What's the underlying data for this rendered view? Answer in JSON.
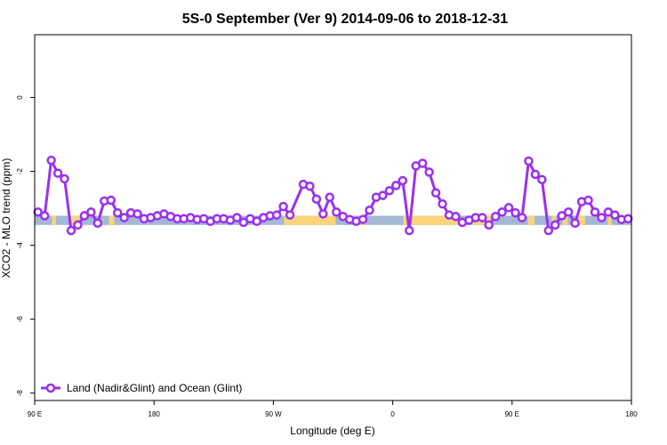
{
  "chart_data": {
    "type": "line",
    "title": "5S-0 September (Ver 9)   2014-09-06 to 2018-12-31",
    "xlabel": "Longitude (deg E)",
    "ylabel": "XCO2 - MLO trend (ppm)",
    "xlim": [
      90,
      540
    ],
    "ylim": [
      -8.2,
      1.7
    ],
    "x_tick_positions": [
      90,
      180,
      270,
      360,
      450,
      540
    ],
    "x_tick_labels": [
      "90 E",
      "180",
      "90 W",
      "0",
      "90 E",
      "180"
    ],
    "y_ticks": [
      0,
      -2,
      -4,
      -6,
      -8
    ],
    "grid": false,
    "legend_position": "bottom-left",
    "colors": {
      "series": "#9B30F0",
      "ocean_band": "#A3B8D5",
      "land_band": "#F8D57A"
    },
    "surface_band": {
      "y_range": [
        -3.45,
        -3.2
      ],
      "land_segments": [
        [
          103,
          106
        ],
        [
          117,
          124
        ],
        [
          146,
          150
        ],
        [
          278,
          317
        ],
        [
          335,
          340
        ],
        [
          368,
          410
        ],
        [
          420,
          434
        ],
        [
          462,
          467
        ],
        [
          480,
          483
        ],
        [
          488,
          492
        ],
        [
          500,
          505
        ],
        [
          522,
          525
        ]
      ]
    },
    "series": [
      {
        "name": "Land (Nadir&Glint) and Ocean (Glint)",
        "x": [
          92.5,
          97.5,
          102.5,
          107.5,
          112.5,
          117.5,
          122.5,
          127.5,
          132.5,
          137.5,
          142.5,
          147.5,
          152.5,
          157.5,
          162.5,
          167.5,
          172.5,
          177.5,
          182.5,
          187.5,
          192.5,
          197.5,
          202.5,
          207.5,
          212.5,
          217.5,
          222.5,
          227.5,
          232.5,
          237.5,
          242.5,
          247.5,
          252.5,
          257.5,
          262.5,
          267.5,
          272.5,
          277.5,
          282.5,
          292.5,
          297.5,
          302.5,
          307.5,
          312.5,
          317.5,
          322.5,
          327.5,
          332.5,
          337.5,
          342.5,
          347.5,
          352.5,
          357.5,
          362.5,
          367.5,
          372.5,
          377.5,
          382.5,
          387.5,
          392.5,
          397.5,
          402.5,
          407.5,
          412.5,
          417.5,
          422.5,
          427.5,
          432.5,
          437.5,
          442.5,
          447.5,
          452.5,
          457.5,
          462.5,
          467.5,
          472.5,
          477.5,
          482.5,
          487.5,
          492.5,
          497.5,
          502.5,
          507.5,
          512.5,
          517.5,
          522.5,
          527.5,
          532.5,
          537.5
        ],
        "values": [
          -3.1,
          -3.2,
          -1.7,
          -2.05,
          -2.2,
          -3.6,
          -3.45,
          -3.2,
          -3.1,
          -3.4,
          -2.8,
          -2.78,
          -3.12,
          -3.25,
          -3.12,
          -3.15,
          -3.28,
          -3.25,
          -3.2,
          -3.15,
          -3.22,
          -3.28,
          -3.28,
          -3.25,
          -3.3,
          -3.28,
          -3.35,
          -3.28,
          -3.28,
          -3.32,
          -3.25,
          -3.38,
          -3.28,
          -3.35,
          -3.25,
          -3.2,
          -3.18,
          -2.95,
          -3.18,
          -2.35,
          -2.4,
          -2.75,
          -3.15,
          -2.7,
          -3.1,
          -3.22,
          -3.3,
          -3.35,
          -3.3,
          -3.05,
          -2.7,
          -2.65,
          -2.52,
          -2.38,
          -2.25,
          -3.6,
          -1.85,
          -1.78,
          -2.02,
          -2.58,
          -2.88,
          -3.18,
          -3.22,
          -3.38,
          -3.32,
          -3.25,
          -3.25,
          -3.45,
          -3.22,
          -3.1,
          -2.98,
          -3.12,
          -3.25,
          -1.72,
          -2.08,
          -2.22,
          -3.6,
          -3.45,
          -3.2,
          -3.1,
          -3.4,
          -2.82,
          -2.78,
          -3.1,
          -3.25,
          -3.1,
          -3.18,
          -3.3,
          -3.28
        ]
      }
    ]
  }
}
